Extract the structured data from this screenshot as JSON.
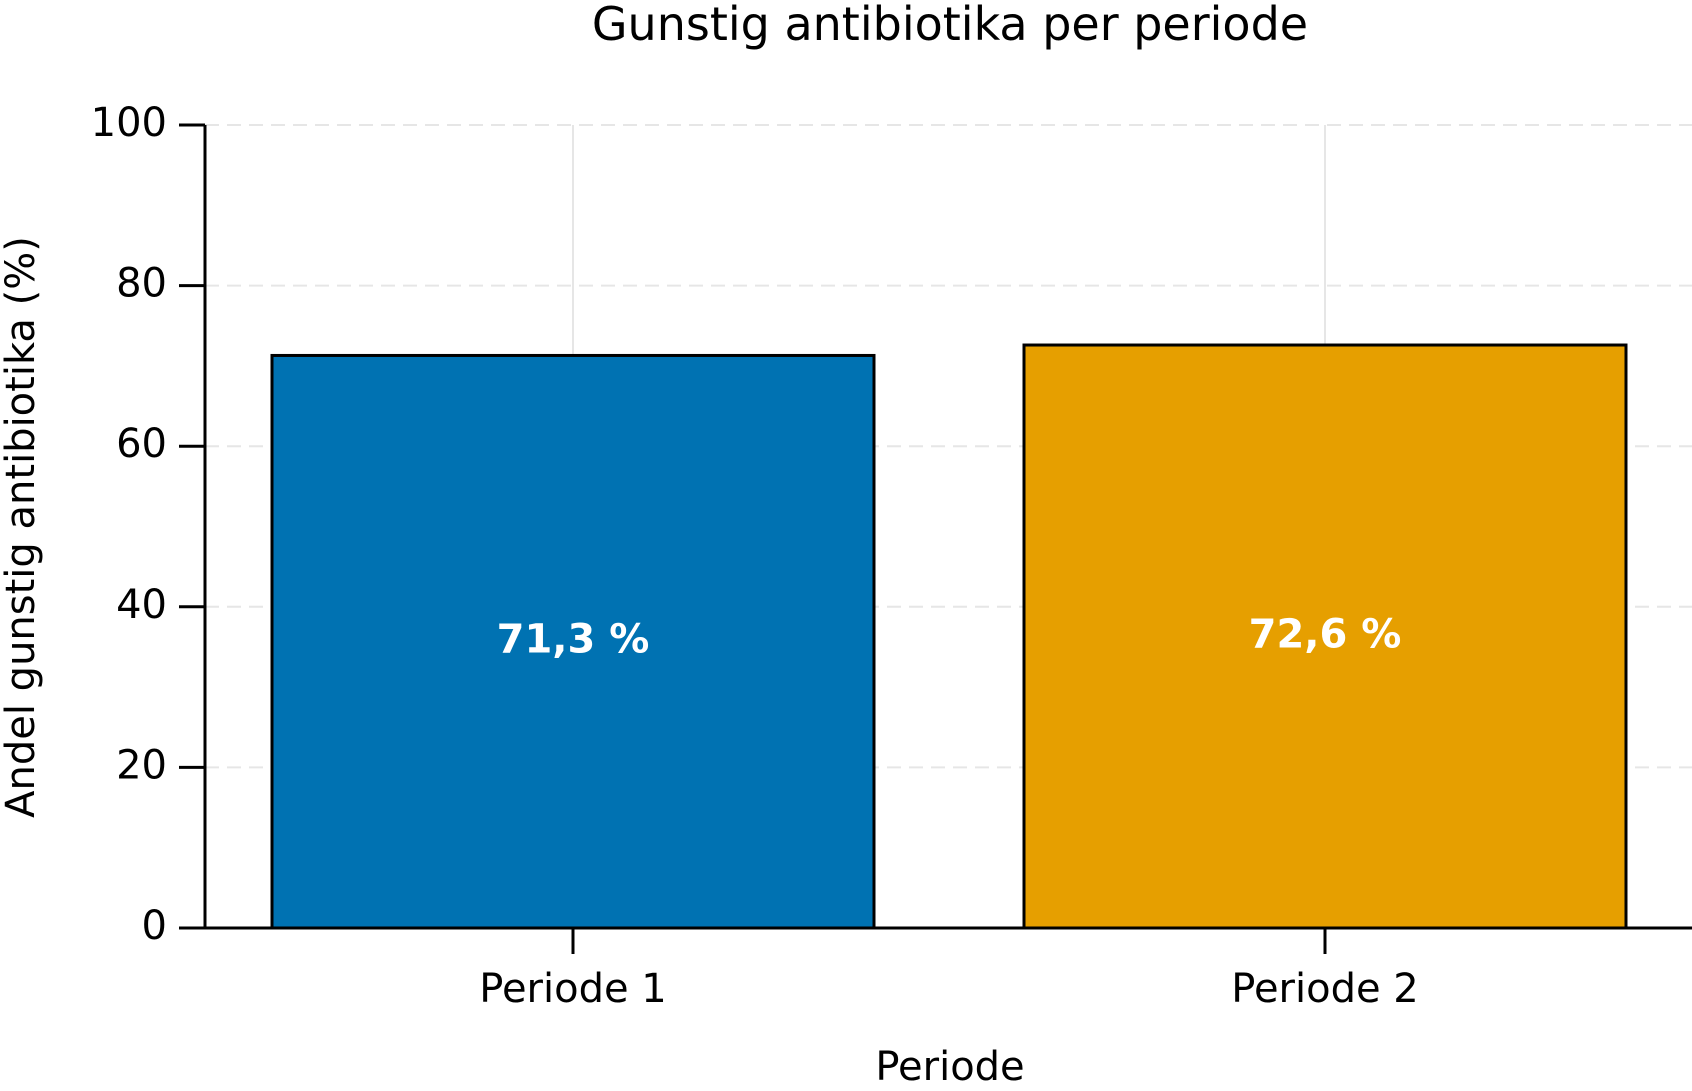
{
  "chart_data": {
    "type": "bar",
    "title": "Gunstig antibiotika per periode",
    "xlabel": "Periode",
    "ylabel": "Andel gunstig antibiotika (%)",
    "categories": [
      "Periode 1",
      "Periode 2"
    ],
    "values": [
      71.3,
      72.6
    ],
    "value_labels": [
      "71,3 %",
      "72,6 %"
    ],
    "colors": [
      "#0072B2",
      "#E69F00"
    ],
    "ylim": [
      0,
      100
    ],
    "yticks": [
      0,
      20,
      40,
      60,
      80,
      100
    ],
    "ytick_labels": [
      "0",
      "20",
      "40",
      "60",
      "80",
      "100"
    ],
    "grid": true
  }
}
